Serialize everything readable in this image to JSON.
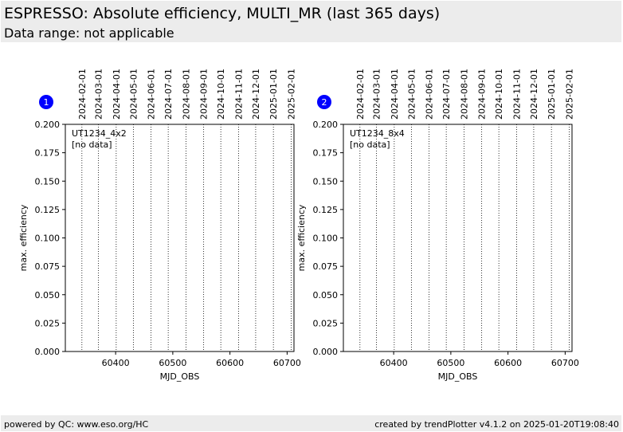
{
  "header": {
    "title": "ESPRESSO: Absolute efficiency, MULTI_MR (last 365 days)",
    "subtitle": "Data range: not applicable"
  },
  "footer": {
    "left": "powered by QC: www.eso.org/HC",
    "right": "created by trendPlotter v4.1.2 on 2025-01-20T19:08:40"
  },
  "colors": {
    "badge": "#0000ff",
    "header_bg": "#ececec"
  },
  "chart_data": [
    {
      "type": "scatter",
      "badge": "1",
      "series": [],
      "annotations": [
        "UT1234_4x2",
        "[no data]"
      ],
      "xlabel": "MJD_OBS",
      "ylabel": "max. efficiency",
      "xlim": [
        60312,
        60712
      ],
      "ylim": [
        0,
        0.2
      ],
      "xticks": [
        60400,
        60500,
        60600,
        60700
      ],
      "yticks": [
        0.0,
        0.025,
        0.05,
        0.075,
        0.1,
        0.125,
        0.15,
        0.175,
        0.2
      ],
      "ytick_labels": [
        "0.000",
        "0.025",
        "0.050",
        "0.075",
        "0.100",
        "0.125",
        "0.150",
        "0.175",
        "0.200"
      ],
      "date_markers": [
        {
          "label": "2024-02-01",
          "mjd": 60341
        },
        {
          "label": "2024-03-01",
          "mjd": 60370
        },
        {
          "label": "2024-04-01",
          "mjd": 60401
        },
        {
          "label": "2024-05-01",
          "mjd": 60431
        },
        {
          "label": "2024-06-01",
          "mjd": 60462
        },
        {
          "label": "2024-07-01",
          "mjd": 60492
        },
        {
          "label": "2024-08-01",
          "mjd": 60523
        },
        {
          "label": "2024-09-01",
          "mjd": 60554
        },
        {
          "label": "2024-10-01",
          "mjd": 60584
        },
        {
          "label": "2024-11-01",
          "mjd": 60615
        },
        {
          "label": "2024-12-01",
          "mjd": 60645
        },
        {
          "label": "2025-01-01",
          "mjd": 60676
        },
        {
          "label": "2025-02-01",
          "mjd": 60707
        }
      ]
    },
    {
      "type": "scatter",
      "badge": "2",
      "series": [],
      "annotations": [
        "UT1234_8x4",
        "[no data]"
      ],
      "xlabel": "MJD_OBS",
      "ylabel": "max. efficiency",
      "xlim": [
        60312,
        60712
      ],
      "ylim": [
        0,
        0.2
      ],
      "xticks": [
        60400,
        60500,
        60600,
        60700
      ],
      "yticks": [
        0.0,
        0.025,
        0.05,
        0.075,
        0.1,
        0.125,
        0.15,
        0.175,
        0.2
      ],
      "ytick_labels": [
        "0.000",
        "0.025",
        "0.050",
        "0.075",
        "0.100",
        "0.125",
        "0.150",
        "0.175",
        "0.200"
      ],
      "date_markers": [
        {
          "label": "2024-02-01",
          "mjd": 60341
        },
        {
          "label": "2024-03-01",
          "mjd": 60370
        },
        {
          "label": "2024-04-01",
          "mjd": 60401
        },
        {
          "label": "2024-05-01",
          "mjd": 60431
        },
        {
          "label": "2024-06-01",
          "mjd": 60462
        },
        {
          "label": "2024-07-01",
          "mjd": 60492
        },
        {
          "label": "2024-08-01",
          "mjd": 60523
        },
        {
          "label": "2024-09-01",
          "mjd": 60554
        },
        {
          "label": "2024-10-01",
          "mjd": 60584
        },
        {
          "label": "2024-11-01",
          "mjd": 60615
        },
        {
          "label": "2024-12-01",
          "mjd": 60645
        },
        {
          "label": "2025-01-01",
          "mjd": 60676
        },
        {
          "label": "2025-02-01",
          "mjd": 60707
        }
      ]
    }
  ]
}
